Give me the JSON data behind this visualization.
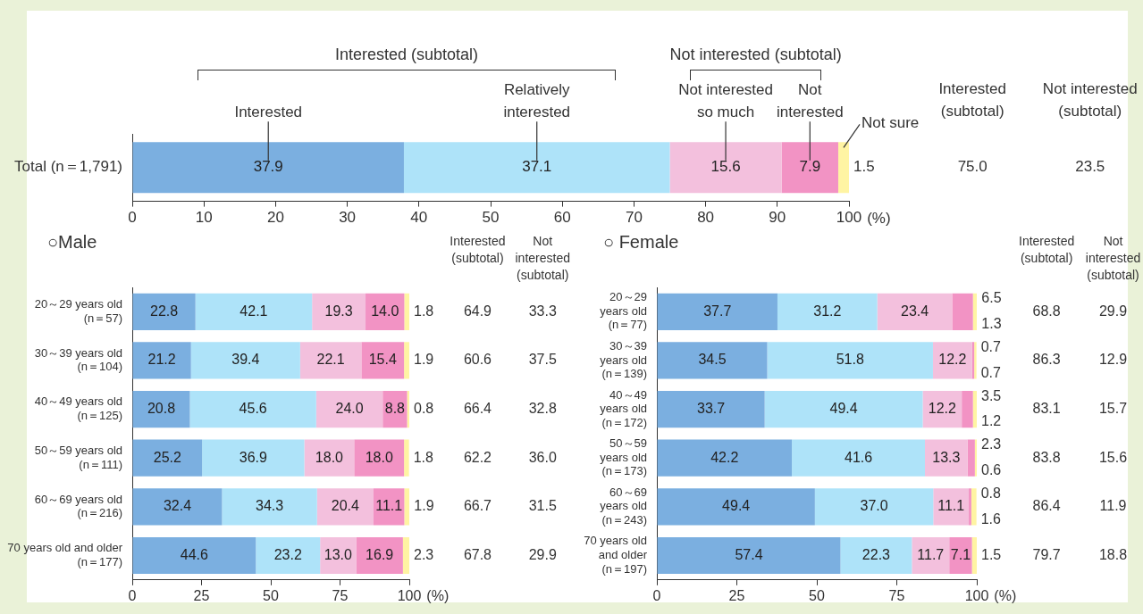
{
  "chart_data": [
    {
      "type": "bar",
      "orientation": "horizontal",
      "stacked": true,
      "categories": [
        "Total (n＝1,791)"
      ],
      "series": [
        {
          "name": "Interested",
          "color": "#7bafe0",
          "values": [
            37.9
          ],
          "value_labels": [
            "37.9"
          ]
        },
        {
          "name": "Relatively interested",
          "color": "#aee3f9",
          "values": [
            37.1
          ],
          "value_labels": [
            "37.1"
          ]
        },
        {
          "name": "Not interested so much",
          "color": "#f3c0dd",
          "values": [
            15.6
          ],
          "value_labels": [
            "15.6"
          ]
        },
        {
          "name": "Not interested",
          "color": "#f293c4",
          "values": [
            7.9
          ],
          "value_labels": [
            "7.9"
          ]
        },
        {
          "name": "Not sure",
          "color": "#fff4a3",
          "values": [
            1.5
          ],
          "value_labels": [
            "1.5"
          ]
        }
      ],
      "xlim": [
        0,
        100
      ],
      "xticks": [
        0,
        10,
        20,
        30,
        40,
        50,
        60,
        70,
        80,
        90,
        100
      ],
      "xlabel": "(%)",
      "grid": false,
      "legend": false,
      "annotations": [
        "Interested (subtotal)",
        "Not interested (subtotal)",
        "Interested (subtotal)",
        "Not interested (subtotal)",
        "75.0",
        "23.5"
      ]
    },
    {
      "type": "bar",
      "orientation": "horizontal",
      "stacked": true,
      "title": "○Male",
      "categories": [
        "20～29 years old (n＝57)",
        "30～39 years old (n＝104)",
        "40～49 years old (n＝125)",
        "50～59 years old (n＝111)",
        "60～69 years old (n＝216)",
        "70 years old and older (n＝177)"
      ],
      "series": [
        {
          "color": "#7bafe0",
          "values": [
            22.8,
            21.2,
            20.8,
            25.2,
            32.4,
            44.6
          ],
          "value_labels": [
            "22.8",
            "21.2",
            "20.8",
            "25.2",
            "32.4",
            "44.6"
          ]
        },
        {
          "color": "#aee3f9",
          "values": [
            42.1,
            39.4,
            45.6,
            36.9,
            34.3,
            23.2
          ],
          "value_labels": [
            "42.1",
            "39.4",
            "45.6",
            "36.9",
            "34.3",
            "23.2"
          ]
        },
        {
          "color": "#f3c0dd",
          "values": [
            19.3,
            22.1,
            24.0,
            18.0,
            20.4,
            13.0
          ],
          "value_labels": [
            "19.3",
            "22.1",
            "24.0",
            "18.0",
            "20.4",
            "13.0"
          ]
        },
        {
          "color": "#f293c4",
          "values": [
            14.0,
            15.4,
            8.8,
            18.0,
            11.1,
            16.9
          ],
          "value_labels": [
            "14.0",
            "15.4",
            "8.8",
            "18.0",
            "11.1",
            "16.9"
          ]
        },
        {
          "color": "#fff4a3",
          "values": [
            1.8,
            1.9,
            0.8,
            1.8,
            1.9,
            2.3
          ],
          "value_labels": [
            "1.8",
            "1.9",
            "0.8",
            "1.8",
            "1.9",
            "2.3"
          ]
        }
      ],
      "xlim": [
        0,
        100
      ],
      "xticks": [
        0,
        25,
        50,
        75,
        100
      ],
      "xlabel": "(%)",
      "grid": false,
      "legend": false,
      "annotations": [
        "Interested (subtotal)",
        "Not interested (subtotal)",
        "64.9",
        "33.3",
        "60.6",
        "37.5",
        "66.4",
        "32.8",
        "62.2",
        "36.0",
        "66.7",
        "31.5",
        "67.8",
        "29.9"
      ]
    },
    {
      "type": "bar",
      "orientation": "horizontal",
      "stacked": true,
      "title": "○ Female",
      "categories": [
        "20～29 years old (n＝77)",
        "30～39 years old (n＝139)",
        "40～49 years old (n＝172)",
        "50～59 years old (n＝173)",
        "60～69 years old (n＝243)",
        "70 years old and older (n＝197)"
      ],
      "series": [
        {
          "color": "#7bafe0",
          "values": [
            37.7,
            34.5,
            33.7,
            42.2,
            49.4,
            57.4
          ],
          "value_labels": [
            "37.7",
            "34.5",
            "33.7",
            "42.2",
            "49.4",
            "57.4"
          ]
        },
        {
          "color": "#aee3f9",
          "values": [
            31.2,
            51.8,
            49.4,
            41.6,
            37.0,
            22.3
          ],
          "value_labels": [
            "31.2",
            "51.8",
            "49.4",
            "41.6",
            "37.0",
            "22.3"
          ]
        },
        {
          "color": "#f3c0dd",
          "values": [
            23.4,
            12.2,
            12.2,
            13.3,
            11.1,
            11.7
          ],
          "value_labels": [
            "23.4",
            "12.2",
            "12.2",
            "13.3",
            "11.1",
            "11.7"
          ]
        },
        {
          "color": "#f293c4",
          "values": [
            6.5,
            0.7,
            3.5,
            2.3,
            0.8,
            7.1
          ],
          "value_labels": [
            "6.5",
            "0.7",
            "3.5",
            "2.3",
            "0.8",
            "7.1"
          ]
        },
        {
          "color": "#fff4a3",
          "values": [
            1.3,
            0.7,
            1.2,
            0.6,
            1.6,
            1.5
          ],
          "value_labels": [
            "1.3",
            "0.7",
            "1.2",
            "0.6",
            "1.6",
            "1.5"
          ]
        }
      ],
      "xlim": [
        0,
        100
      ],
      "xticks": [
        0,
        25,
        50,
        75,
        100
      ],
      "xlabel": "(%)",
      "grid": false,
      "legend": false,
      "annotations": [
        "Interested (subtotal)",
        "Not interested (subtotal)",
        "68.8",
        "29.9",
        "86.3",
        "12.9",
        "83.1",
        "15.7",
        "83.8",
        "15.6",
        "86.4",
        "11.9",
        "79.7",
        "18.8"
      ]
    }
  ]
}
